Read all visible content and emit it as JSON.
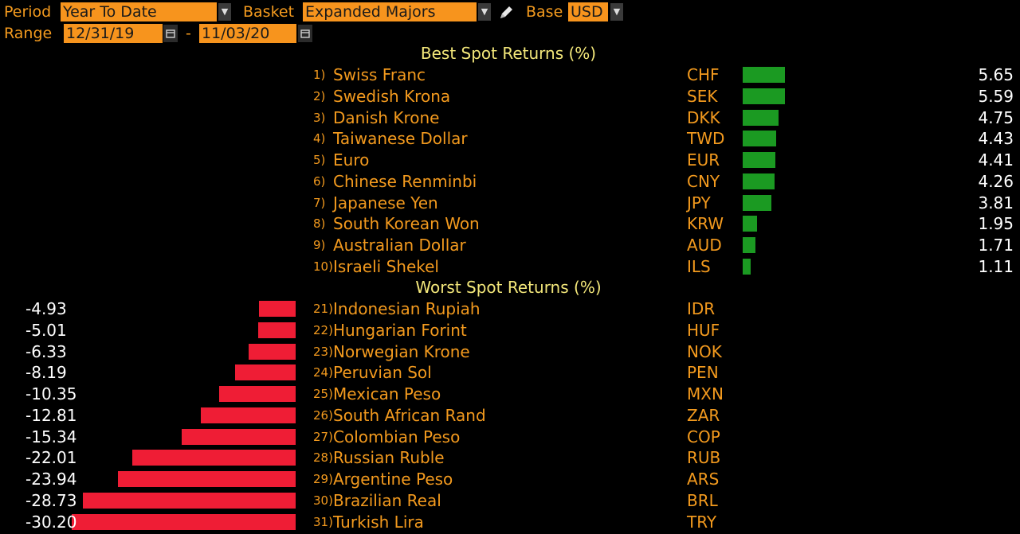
{
  "toolbar": {
    "period_label": "Period",
    "period_value": "Year To Date",
    "basket_label": "Basket",
    "basket_value": "Expanded Majors",
    "base_label": "Base",
    "base_value": "USD",
    "range_label": "Range",
    "range_start": "12/31/19",
    "range_sep": "-",
    "range_end": "11/03/20"
  },
  "best_title": "Best Spot Returns (%)",
  "worst_title": "Worst Spot Returns (%)",
  "best": [
    {
      "rank": "1)",
      "name": "Swiss Franc",
      "code": "CHF",
      "value": "5.65",
      "num": 5.65
    },
    {
      "rank": "2)",
      "name": "Swedish Krona",
      "code": "SEK",
      "value": "5.59",
      "num": 5.59
    },
    {
      "rank": "3)",
      "name": "Danish Krone",
      "code": "DKK",
      "value": "4.75",
      "num": 4.75
    },
    {
      "rank": "4)",
      "name": "Taiwanese Dollar",
      "code": "TWD",
      "value": "4.43",
      "num": 4.43
    },
    {
      "rank": "5)",
      "name": "Euro",
      "code": "EUR",
      "value": "4.41",
      "num": 4.41
    },
    {
      "rank": "6)",
      "name": "Chinese Renminbi",
      "code": "CNY",
      "value": "4.26",
      "num": 4.26
    },
    {
      "rank": "7)",
      "name": "Japanese Yen",
      "code": "JPY",
      "value": "3.81",
      "num": 3.81
    },
    {
      "rank": "8)",
      "name": "South Korean Won",
      "code": "KRW",
      "value": "1.95",
      "num": 1.95
    },
    {
      "rank": "9)",
      "name": "Australian Dollar",
      "code": "AUD",
      "value": "1.71",
      "num": 1.71
    },
    {
      "rank": "10)",
      "name": "Israeli Shekel",
      "code": "ILS",
      "value": "1.11",
      "num": 1.11
    }
  ],
  "worst": [
    {
      "rank": "21)",
      "name": "Indonesian Rupiah",
      "code": "IDR",
      "value": "-4.93",
      "num": -4.93
    },
    {
      "rank": "22)",
      "name": "Hungarian Forint",
      "code": "HUF",
      "value": "-5.01",
      "num": -5.01
    },
    {
      "rank": "23)",
      "name": "Norwegian Krone",
      "code": "NOK",
      "value": "-6.33",
      "num": -6.33
    },
    {
      "rank": "24)",
      "name": "Peruvian Sol",
      "code": "PEN",
      "value": "-8.19",
      "num": -8.19
    },
    {
      "rank": "25)",
      "name": "Mexican Peso",
      "code": "MXN",
      "value": "-10.35",
      "num": -10.35
    },
    {
      "rank": "26)",
      "name": "South African Rand",
      "code": "ZAR",
      "value": "-12.81",
      "num": -12.81
    },
    {
      "rank": "27)",
      "name": "Colombian Peso",
      "code": "COP",
      "value": "-15.34",
      "num": -15.34
    },
    {
      "rank": "28)",
      "name": "Russian Ruble",
      "code": "RUB",
      "value": "-22.01",
      "num": -22.01
    },
    {
      "rank": "29)",
      "name": "Argentine Peso",
      "code": "ARS",
      "value": "-23.94",
      "num": -23.94
    },
    {
      "rank": "30)",
      "name": "Brazilian Real",
      "code": "BRL",
      "value": "-28.73",
      "num": -28.73
    },
    {
      "rank": "31)",
      "name": "Turkish Lira",
      "code": "TRY",
      "value": "-30.20",
      "num": -30.2
    }
  ],
  "colors": {
    "label": "#f39a1e",
    "field_bg": "#f7941d",
    "title": "#f3e77a",
    "positive_bar": "#1b9a22",
    "negative_bar": "#ef1d35",
    "value_text": "#ffffff"
  },
  "icons": [
    "chevron-down-icon",
    "pencil-icon",
    "calendar-icon"
  ]
}
